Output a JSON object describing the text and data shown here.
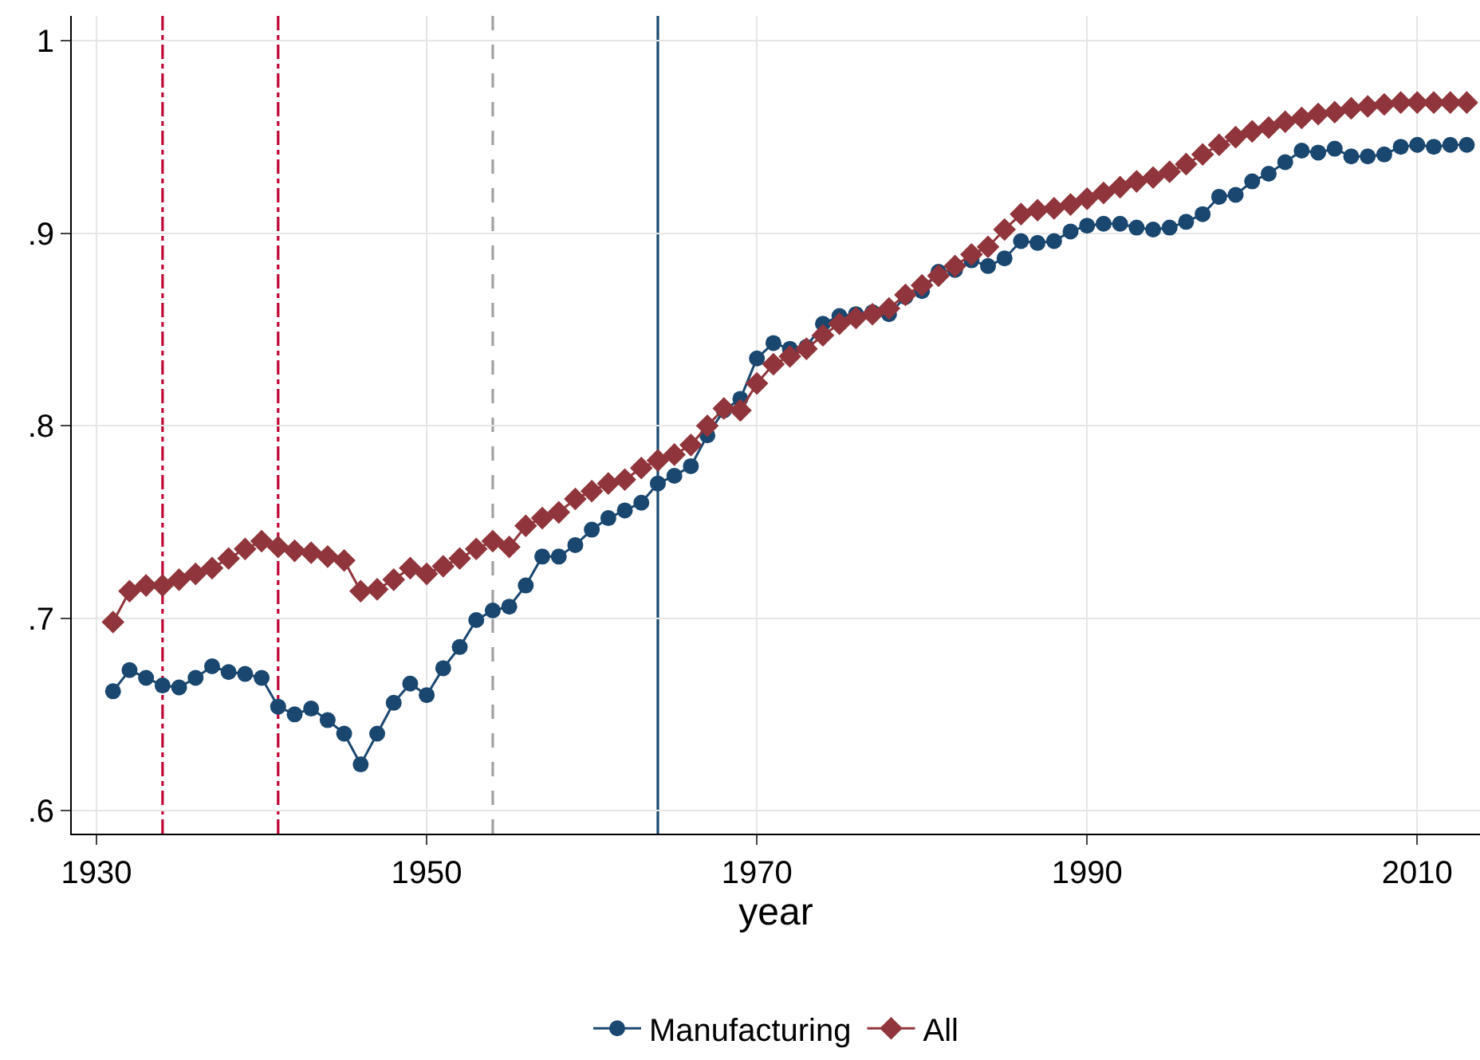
{
  "chart_data": {
    "type": "line",
    "xlabel": "year",
    "x": [
      1931,
      1932,
      1933,
      1934,
      1935,
      1936,
      1937,
      1938,
      1939,
      1940,
      1941,
      1942,
      1943,
      1944,
      1945,
      1946,
      1947,
      1948,
      1949,
      1950,
      1951,
      1952,
      1953,
      1954,
      1955,
      1956,
      1957,
      1958,
      1959,
      1960,
      1961,
      1962,
      1963,
      1964,
      1965,
      1966,
      1967,
      1968,
      1969,
      1970,
      1971,
      1972,
      1973,
      1974,
      1975,
      1976,
      1977,
      1978,
      1979,
      1980,
      1981,
      1982,
      1983,
      1984,
      1985,
      1986,
      1987,
      1988,
      1989,
      1990,
      1991,
      1992,
      1993,
      1994,
      1995,
      1996,
      1997,
      1998,
      1999,
      2000,
      2001,
      2002,
      2003,
      2004,
      2005,
      2006,
      2007,
      2008,
      2009,
      2010,
      2011,
      2012,
      2013
    ],
    "series": [
      {
        "name": "Manufacturing",
        "color": "#1a476f",
        "marker": "circle",
        "values": [
          0.662,
          0.673,
          0.669,
          0.665,
          0.664,
          0.669,
          0.675,
          0.672,
          0.671,
          0.669,
          0.654,
          0.65,
          0.653,
          0.647,
          0.64,
          0.624,
          0.64,
          0.656,
          0.666,
          0.66,
          0.674,
          0.685,
          0.699,
          0.704,
          0.706,
          0.717,
          0.732,
          0.732,
          0.738,
          0.746,
          0.752,
          0.756,
          0.76,
          0.77,
          0.774,
          0.779,
          0.795,
          0.808,
          0.814,
          0.835,
          0.843,
          0.84,
          0.841,
          0.853,
          0.857,
          0.858,
          0.859,
          0.858,
          0.867,
          0.87,
          0.88,
          0.881,
          0.886,
          0.883,
          0.887,
          0.896,
          0.895,
          0.896,
          0.901,
          0.904,
          0.905,
          0.905,
          0.903,
          0.902,
          0.903,
          0.906,
          0.91,
          0.919,
          0.92,
          0.927,
          0.931,
          0.937,
          0.943,
          0.942,
          0.944,
          0.94,
          0.94,
          0.941,
          0.945,
          0.946,
          0.945,
          0.946,
          0.946
        ]
      },
      {
        "name": "All",
        "color": "#90353b",
        "marker": "diamond",
        "values": [
          0.698,
          0.714,
          0.717,
          0.717,
          0.72,
          0.723,
          0.726,
          0.731,
          0.736,
          0.74,
          0.737,
          0.735,
          0.734,
          0.732,
          0.73,
          0.714,
          0.715,
          0.72,
          0.726,
          0.723,
          0.727,
          0.731,
          0.736,
          0.74,
          0.737,
          0.748,
          0.752,
          0.755,
          0.762,
          0.766,
          0.77,
          0.772,
          0.778,
          0.782,
          0.785,
          0.79,
          0.8,
          0.809,
          0.808,
          0.822,
          0.832,
          0.836,
          0.84,
          0.847,
          0.853,
          0.856,
          0.858,
          0.861,
          0.868,
          0.873,
          0.878,
          0.883,
          0.889,
          0.893,
          0.902,
          0.91,
          0.912,
          0.913,
          0.915,
          0.918,
          0.921,
          0.924,
          0.927,
          0.929,
          0.932,
          0.936,
          0.941,
          0.946,
          0.95,
          0.953,
          0.955,
          0.958,
          0.96,
          0.962,
          0.963,
          0.965,
          0.966,
          0.967,
          0.968,
          0.968,
          0.968,
          0.968,
          0.968
        ]
      }
    ],
    "xlim": [
      1928.5,
      2013.8
    ],
    "xticks": [
      1930,
      1950,
      1970,
      1990,
      2010
    ],
    "ylim": [
      0.588,
      1.013
    ],
    "yticks": [
      {
        "value": 0.6,
        "label": ".6"
      },
      {
        "value": 0.7,
        "label": ".7"
      },
      {
        "value": 0.8,
        "label": ".8"
      },
      {
        "value": 0.9,
        "label": ".9"
      },
      {
        "value": 1,
        "label": "1"
      }
    ],
    "ref_lines": [
      {
        "axis": "x",
        "value": 1934,
        "color": "#c10534",
        "line_style": "dashdot"
      },
      {
        "axis": "x",
        "value": 1941,
        "color": "#c10534",
        "line_style": "dashdot"
      },
      {
        "axis": "x",
        "value": 1954,
        "color": "#a0a0a0",
        "line_style": "dashed"
      },
      {
        "axis": "x",
        "value": 1964,
        "color": "#1a476f",
        "line_style": "solid"
      }
    ],
    "grid": true,
    "legend": "bottom",
    "line_style": "solid"
  }
}
